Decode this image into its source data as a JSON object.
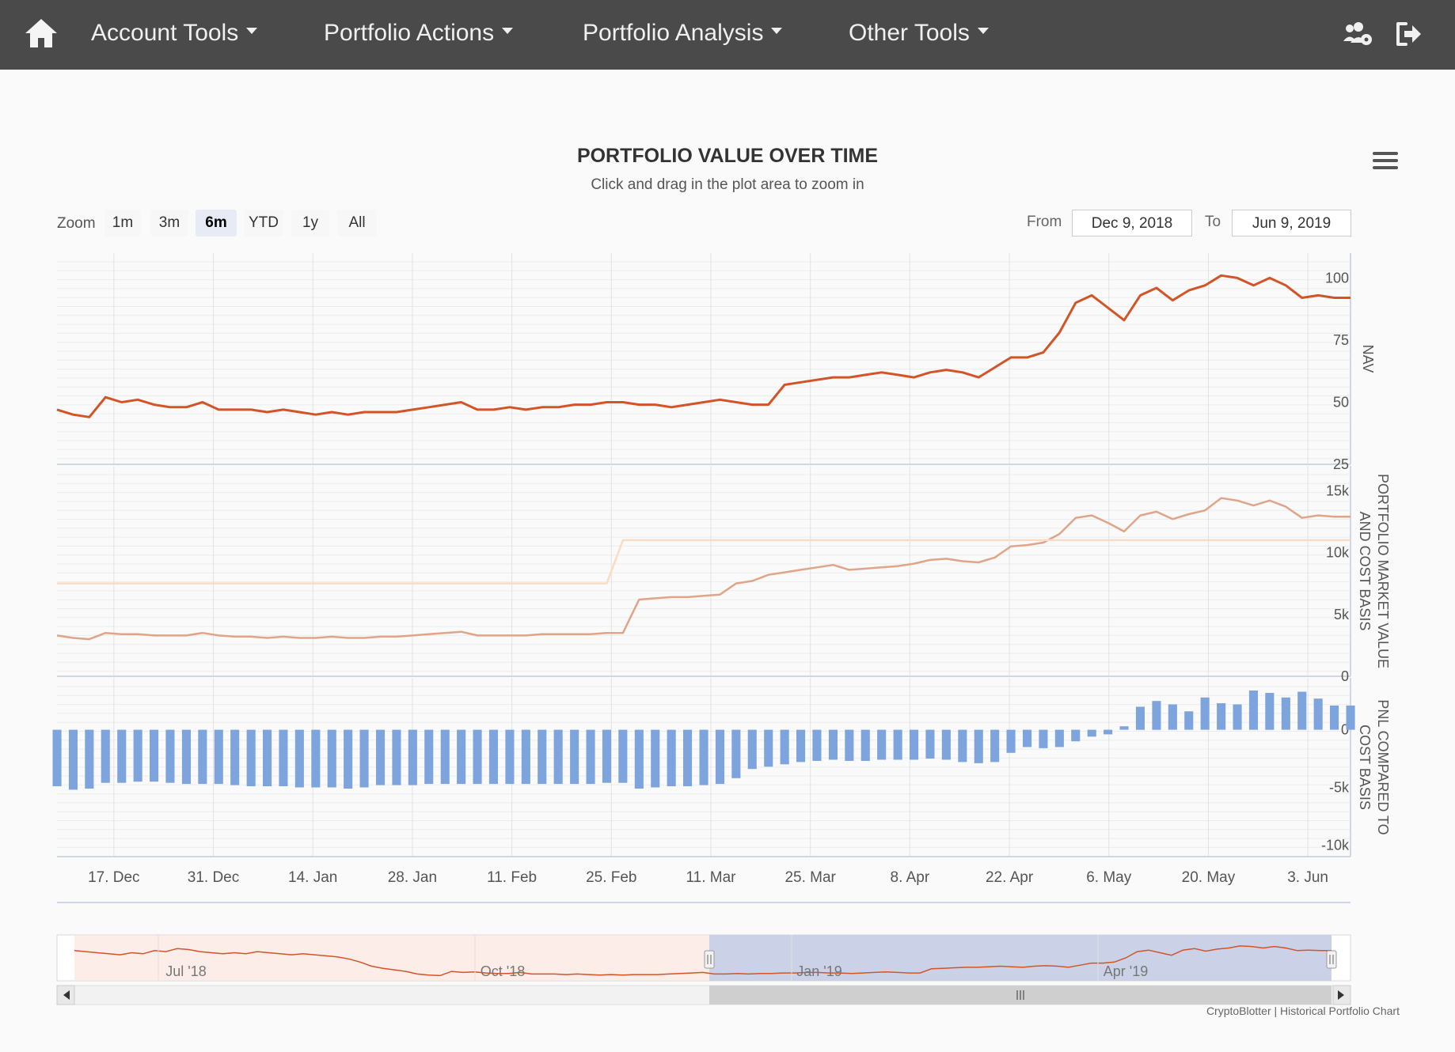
{
  "nav": {
    "items": [
      {
        "label": "Account Tools"
      },
      {
        "label": "Portfolio Actions"
      },
      {
        "label": "Portfolio Analysis"
      },
      {
        "label": "Other Tools"
      }
    ],
    "icons": [
      "home-icon",
      "users-cog-icon",
      "sign-out-icon"
    ]
  },
  "chart": {
    "title": "PORTFOLIO VALUE OVER TIME",
    "subtitle": "Click and drag in the plot area to zoom in",
    "zoom_label": "Zoom",
    "zoom_buttons": [
      "1m",
      "3m",
      "6m",
      "YTD",
      "1y",
      "All"
    ],
    "zoom_selected": "6m",
    "from_label": "From",
    "from_value": "Dec 9, 2018",
    "to_label": "To",
    "to_value": "Jun 9, 2019",
    "credit": "CryptoBlotter | Historical Portfolio Chart"
  },
  "chart_data": {
    "type": "line",
    "x_range": [
      "2018-12-09",
      "2019-06-09"
    ],
    "x_ticks": [
      "17. Dec",
      "31. Dec",
      "14. Jan",
      "28. Jan",
      "11. Feb",
      "25. Feb",
      "11. Mar",
      "25. Mar",
      "8. Apr",
      "22. Apr",
      "6. May",
      "20. May",
      "3. Jun"
    ],
    "panes": [
      {
        "ylabel": "NAV",
        "ylim": [
          25,
          110
        ],
        "yticks": [
          "25",
          "50",
          "75",
          "100"
        ],
        "series": [
          {
            "type": "line",
            "color": "#d35426",
            "values": [
              47,
              45,
              44,
              52,
              50,
              51,
              49,
              48,
              48,
              50,
              47,
              47,
              47,
              46,
              47,
              46,
              45,
              46,
              45,
              46,
              46,
              46,
              47,
              48,
              49,
              50,
              47,
              47,
              48,
              47,
              48,
              48,
              49,
              49,
              50,
              50,
              49,
              49,
              48,
              49,
              50,
              51,
              50,
              49,
              49,
              57,
              58,
              59,
              60,
              60,
              61,
              62,
              61,
              60,
              62,
              63,
              62,
              60,
              64,
              68,
              68,
              70,
              78,
              90,
              93,
              88,
              83,
              93,
              96,
              91,
              95,
              97,
              101,
              100,
              97,
              100,
              97,
              92,
              93,
              92,
              92
            ]
          }
        ]
      },
      {
        "ylabel": "PORTFOLIO MARKET VALUE AND COST BASIS",
        "ylim": [
          0,
          17000
        ],
        "yticks": [
          "0",
          "5k",
          "10k",
          "15k"
        ],
        "series": [
          {
            "type": "line",
            "color": "#e0a488",
            "values": [
              3300,
              3100,
              3000,
              3500,
              3400,
              3400,
              3300,
              3300,
              3300,
              3500,
              3300,
              3200,
              3200,
              3100,
              3200,
              3100,
              3100,
              3200,
              3100,
              3100,
              3200,
              3200,
              3300,
              3400,
              3500,
              3600,
              3300,
              3300,
              3300,
              3300,
              3400,
              3400,
              3400,
              3400,
              3500,
              3500,
              6200,
              6300,
              6400,
              6400,
              6500,
              6600,
              7500,
              7700,
              8200,
              8400,
              8600,
              8800,
              9000,
              8600,
              8700,
              8800,
              8900,
              9100,
              9400,
              9500,
              9300,
              9200,
              9600,
              10500,
              10600,
              10800,
              11500,
              12800,
              13000,
              12400,
              11700,
              13000,
              13300,
              12700,
              13100,
              13400,
              14400,
              14200,
              13800,
              14200,
              13700,
              12800,
              13000,
              12900,
              12900
            ]
          },
          {
            "type": "line",
            "color": "#fadcc4",
            "values": [
              7500,
              7500,
              7500,
              7500,
              7500,
              7500,
              7500,
              7500,
              7500,
              7500,
              7500,
              7500,
              7500,
              7500,
              7500,
              7500,
              7500,
              7500,
              7500,
              7500,
              7500,
              7500,
              7500,
              7500,
              7500,
              7500,
              7500,
              7500,
              7500,
              7500,
              7500,
              7500,
              7500,
              7500,
              7500,
              11000,
              11000,
              11000,
              11000,
              11000,
              11000,
              11000,
              11000,
              11000,
              11000,
              11000,
              11000,
              11000,
              11000,
              11000,
              11000,
              11000,
              11000,
              11000,
              11000,
              11000,
              11000,
              11000,
              11000,
              11000,
              11000,
              11000,
              11000,
              11000,
              11000,
              11000,
              11000,
              11000,
              11000,
              11000,
              11000,
              11000,
              11000,
              11000,
              11000,
              11000,
              11000,
              11000,
              11000,
              11000,
              11000
            ]
          }
        ]
      },
      {
        "ylabel": "PNL COMPARED TO COST BASIS",
        "ylim": [
          -11000,
          4500
        ],
        "yticks": [
          "-10k",
          "-5k",
          "0"
        ],
        "series": [
          {
            "type": "column",
            "color": "#7ea4dd",
            "values": [
              -4900,
              -5200,
              -5100,
              -4600,
              -4600,
              -4500,
              -4500,
              -4600,
              -4700,
              -4700,
              -4700,
              -4800,
              -4900,
              -4900,
              -4900,
              -5000,
              -5000,
              -5000,
              -5100,
              -5000,
              -4800,
              -4800,
              -4800,
              -4700,
              -4700,
              -4700,
              -4700,
              -4700,
              -4700,
              -4700,
              -4700,
              -4700,
              -4700,
              -4700,
              -4600,
              -4600,
              -5100,
              -5000,
              -4900,
              -4900,
              -4800,
              -4700,
              -4200,
              -3400,
              -3200,
              -3000,
              -2800,
              -2700,
              -2600,
              -2700,
              -2700,
              -2600,
              -2600,
              -2600,
              -2500,
              -2600,
              -2800,
              -2900,
              -2800,
              -2000,
              -1500,
              -1600,
              -1500,
              -1000,
              -600,
              -400,
              300,
              2000,
              2500,
              2200,
              1600,
              2800,
              2300,
              2200,
              3400,
              3200,
              2800,
              3300,
              2700,
              2100,
              2100
            ]
          }
        ]
      }
    ],
    "navigator": {
      "x_ticks": [
        "Jul '18",
        "Oct '18",
        "Jan '19",
        "Apr '19"
      ]
    }
  }
}
